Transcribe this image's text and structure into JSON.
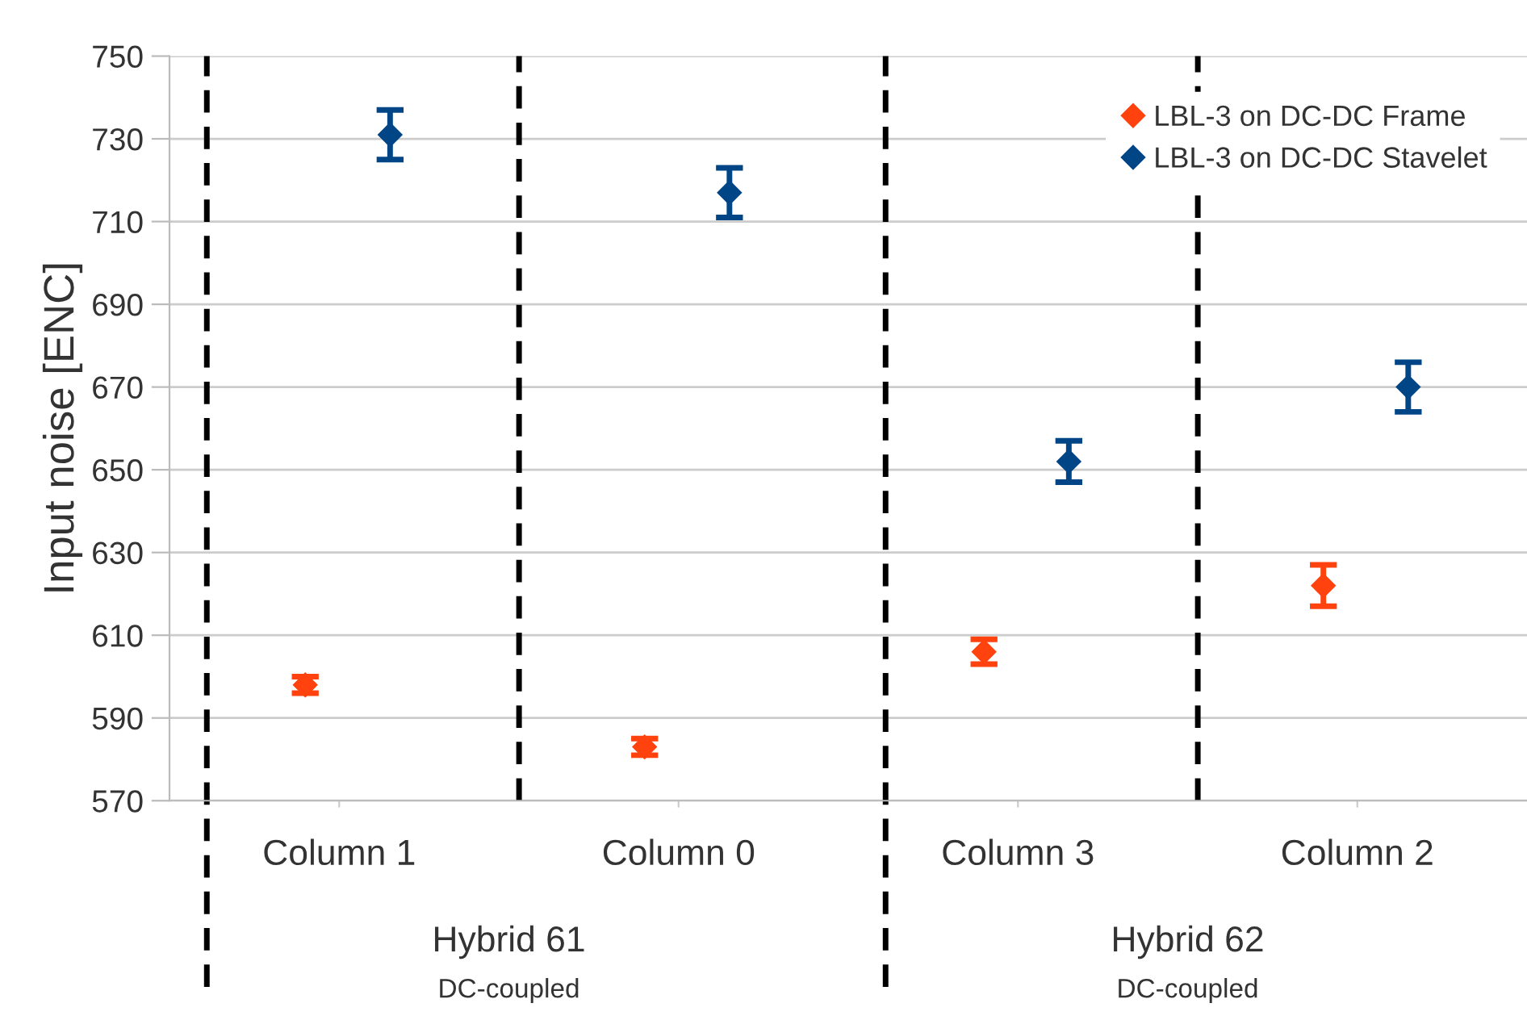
{
  "chart_data": {
    "type": "scatter",
    "ylabel": "Input noise [ENC]",
    "categories": [
      "Column 1",
      "Column 0",
      "Column 3",
      "Column 2"
    ],
    "series": [
      {
        "name": "LBL-3 on DC-DC Frame",
        "color": "#ff420e",
        "values": [
          598,
          583,
          606,
          622
        ],
        "errors": [
          2,
          2,
          3,
          5
        ]
      },
      {
        "name": "LBL-3 on DC-DC Stavelet",
        "color": "#004586",
        "values": [
          731,
          717,
          652,
          670
        ],
        "errors": [
          6,
          6,
          5,
          6
        ]
      }
    ],
    "annotations": [
      "Hybrid 61",
      "DC-coupled",
      "Hybrid 62",
      "DC-coupled"
    ],
    "ylim": [
      570,
      750
    ],
    "yticks": [
      570,
      590,
      610,
      630,
      650,
      670,
      690,
      710,
      730,
      750
    ],
    "grid": "y",
    "legend": "top right",
    "marker": "diamond"
  }
}
